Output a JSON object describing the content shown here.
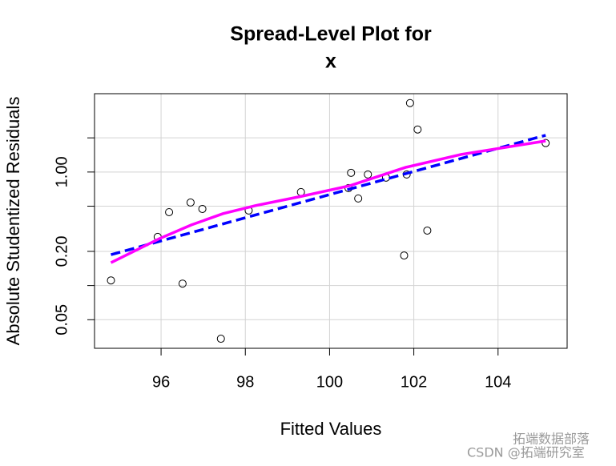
{
  "chart_data": {
    "type": "scatter",
    "title": "Spread-Level Plot for",
    "subtitle": "x",
    "x_label": "Fitted Values",
    "y_label": "Absolute Studentized Residuals",
    "y_log": true,
    "grid": true,
    "xlim": [
      94.42,
      105.64
    ],
    "xticks": [
      96,
      98,
      100,
      102,
      104
    ],
    "ylim": [
      0.028,
      4.9
    ],
    "yticks": [
      {
        "value": 0.05,
        "label": "0.05"
      },
      {
        "value": 0.2,
        "label": "0.20"
      },
      {
        "value": 1,
        "label": "1.00"
      }
    ],
    "minor_yticks": [
      0.1,
      0.5,
      2
    ],
    "series": [
      {
        "style": "points",
        "color": "#000000",
        "x": [
          94.81,
          95.92,
          96.19,
          96.51,
          96.7,
          96.98,
          97.42,
          98.08,
          99.32,
          100.45,
          100.51,
          100.68,
          100.91,
          101.34,
          101.77,
          101.83,
          101.91,
          102.09,
          102.32,
          105.13
        ],
        "values": [
          0.111,
          0.268,
          0.443,
          0.104,
          0.539,
          0.473,
          0.034,
          0.458,
          0.666,
          0.722,
          0.984,
          0.585,
          0.952,
          0.893,
          0.184,
          0.952,
          4.05,
          2.37,
          0.305,
          1.8
        ]
      },
      {
        "style": "dashed",
        "color": "#0000ff",
        "x": [
          94.81,
          105.13
        ],
        "values": [
          0.187,
          2.11
        ]
      },
      {
        "style": "solid",
        "color": "#ff00ff",
        "x": [
          94.81,
          95.96,
          96.72,
          97.47,
          98.23,
          99.36,
          100.49,
          101.81,
          103.13,
          105.13
        ],
        "values": [
          0.159,
          0.259,
          0.342,
          0.43,
          0.505,
          0.614,
          0.759,
          1.1,
          1.43,
          1.88
        ]
      }
    ]
  },
  "watermark": {
    "line1": "拓端数据部落",
    "line2": "CSDN @拓端研究室"
  }
}
